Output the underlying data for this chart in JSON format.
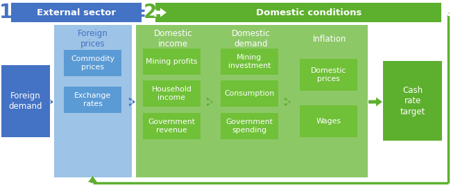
{
  "blue_dark": "#4472C4",
  "blue_mid": "#5B9BD5",
  "blue_light": "#9DC3E6",
  "green_dark": "#5DAF2E",
  "green_mid": "#70C038",
  "green_light": "#8DC867",
  "green_col": "#5DAF2E",
  "white": "#FFFFFF",
  "bg": "#FFFFFF",
  "header1_text": "External sector",
  "header2_text": "Domestic conditions",
  "num1": "1",
  "num2": "2",
  "box_foreign_demand": "Foreign\ndemand",
  "box_foreign_prices": "Foreign\nprices",
  "sub_commodity": "Commodity\nprices",
  "sub_exchange": "Exchange\nrates",
  "box_dom_income": "Domestic\nincome",
  "sub_mining_profits": "Mining profits",
  "sub_household": "Household\nincome",
  "sub_gov_revenue": "Government\nrevenue",
  "box_dom_demand": "Domestic\ndemand",
  "sub_mining_inv": "Mining\ninvestment",
  "sub_consumption": "Consumption",
  "sub_gov_spending": "Government\nspending",
  "box_inflation": "Inflation",
  "sub_dom_prices": "Domestic\nprices",
  "sub_wages": "Wages",
  "box_cash_rate": "Cash\nrate\ntarget",
  "figw": 6.5,
  "figh": 2.67,
  "dpi": 100
}
